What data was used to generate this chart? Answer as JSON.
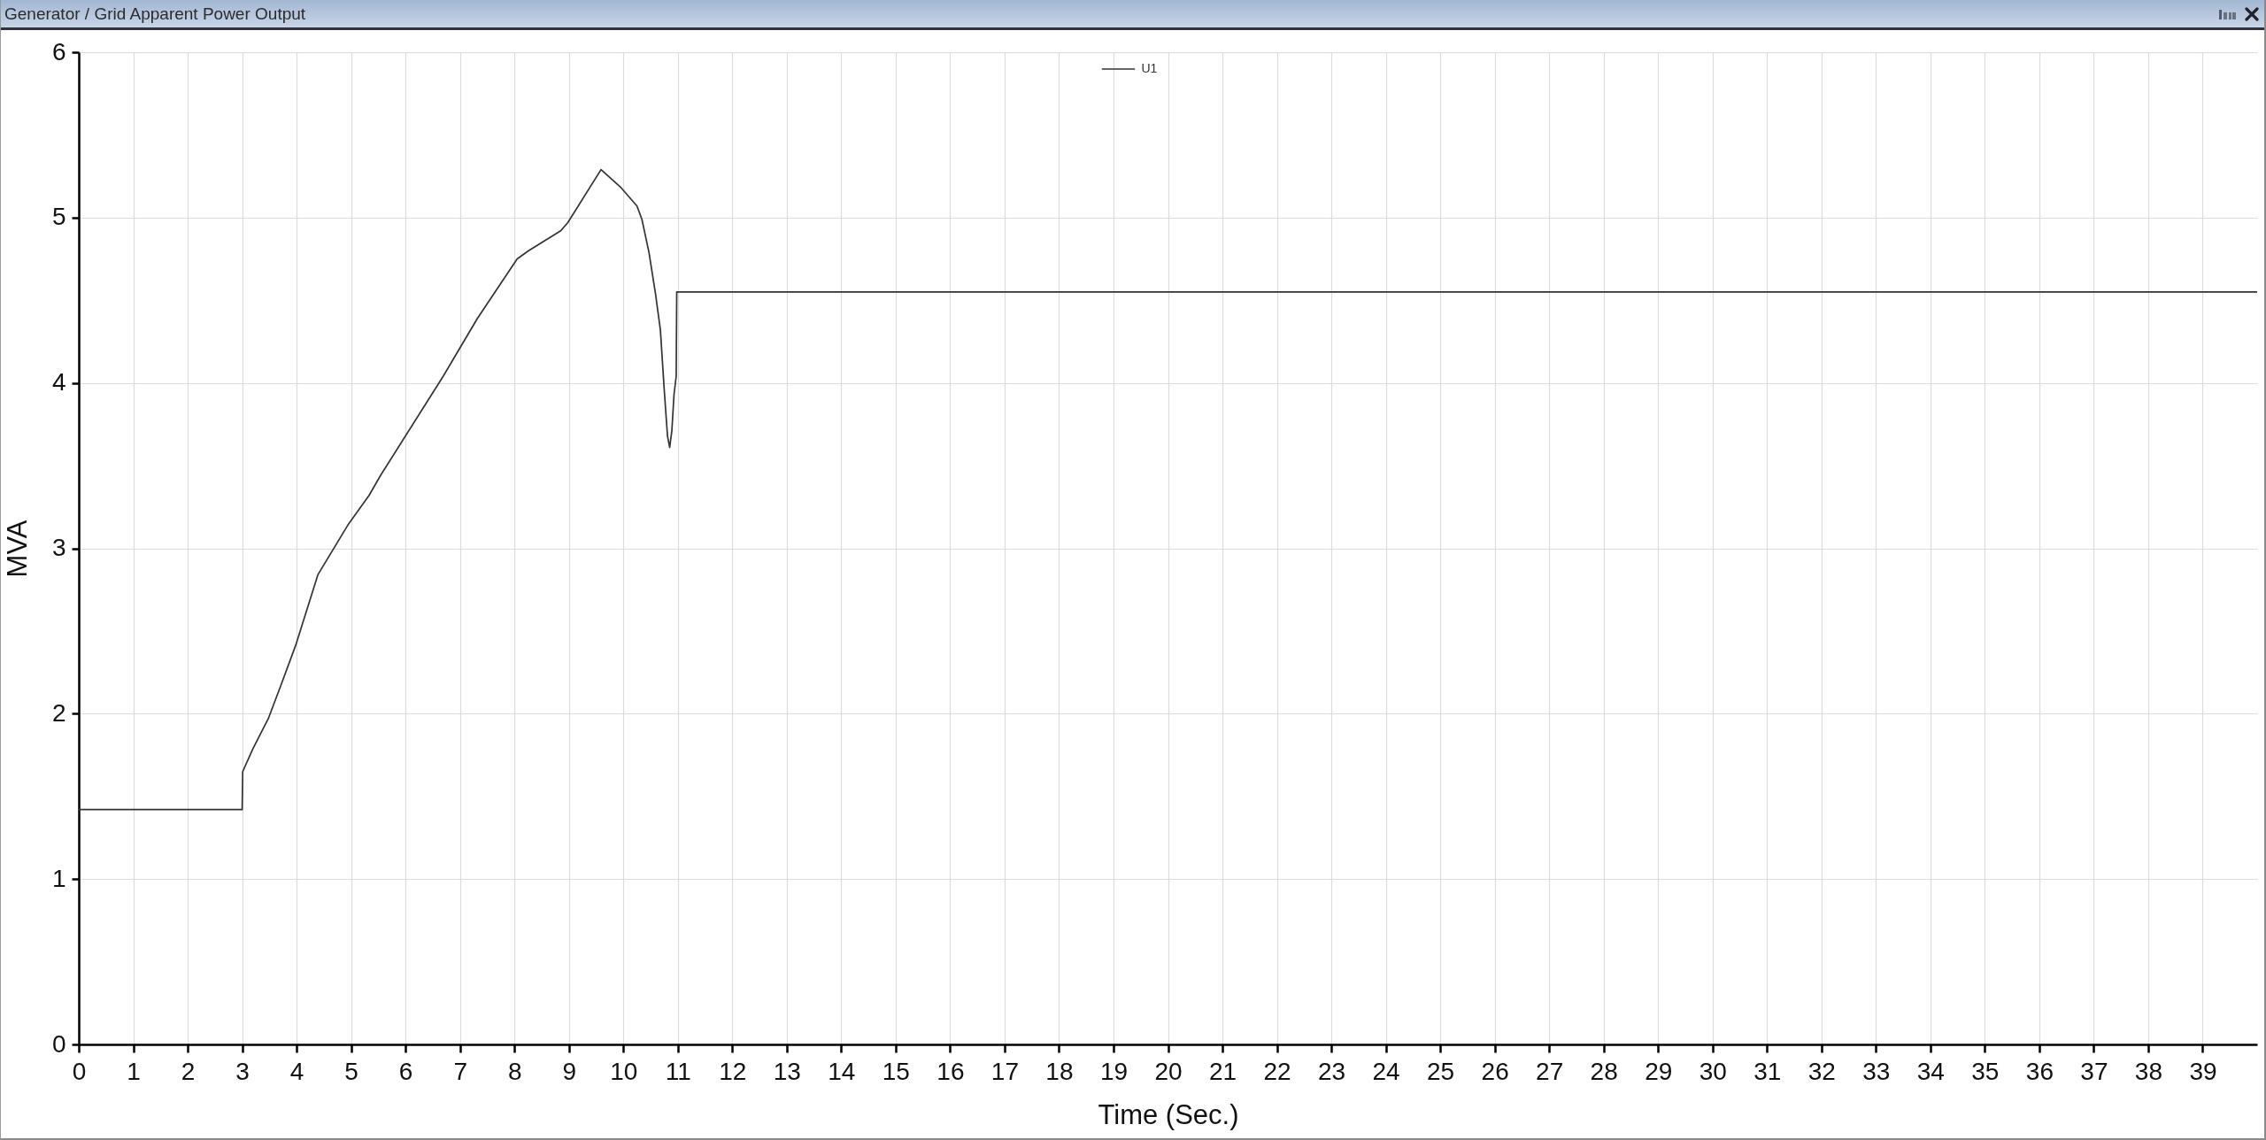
{
  "chart_data": {
    "type": "line",
    "title": "Generator / Grid Apparent Power Output",
    "xlabel": "Time (Sec.)",
    "ylabel": "MVA",
    "x": [
      0,
      3.0,
      3.01,
      3.2,
      3.48,
      3.71,
      3.99,
      4.39,
      4.94,
      5.33,
      5.54,
      6.69,
      7.32,
      8.05,
      8.26,
      8.85,
      8.98,
      9.59,
      9.96,
      10.25,
      10.34,
      10.47,
      10.59,
      10.68,
      10.75,
      10.81,
      10.85,
      10.89,
      10.93,
      10.97,
      10.98,
      40
    ],
    "series": [
      {
        "name": "U1",
        "color": "#333333",
        "values": [
          1.42,
          1.42,
          1.65,
          1.79,
          1.97,
          2.17,
          2.42,
          2.84,
          3.14,
          3.32,
          3.44,
          4.04,
          4.39,
          4.75,
          4.8,
          4.92,
          4.97,
          5.29,
          5.18,
          5.07,
          4.99,
          4.79,
          4.54,
          4.32,
          3.96,
          3.68,
          3.61,
          3.71,
          3.93,
          4.04,
          4.55,
          4.55
        ]
      }
    ],
    "xlim": [
      0,
      40
    ],
    "xticks": [
      0,
      1,
      2,
      3,
      4,
      5,
      6,
      7,
      8,
      9,
      10,
      11,
      12,
      13,
      14,
      15,
      16,
      17,
      18,
      19,
      20,
      21,
      22,
      23,
      24,
      25,
      26,
      27,
      28,
      29,
      30,
      31,
      32,
      33,
      34,
      35,
      36,
      37,
      38,
      39
    ],
    "ylim": [
      0,
      6
    ],
    "yticks": [
      0,
      1,
      2,
      3,
      4,
      5,
      6
    ],
    "grid": true,
    "legend": "top"
  }
}
